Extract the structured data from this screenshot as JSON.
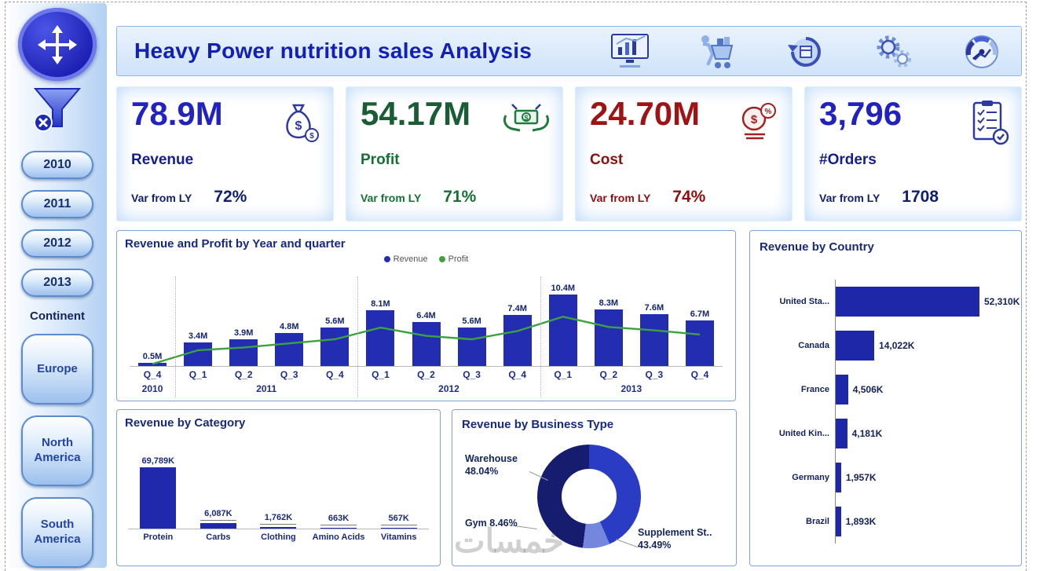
{
  "header": {
    "title": "Heavy Power nutrition sales Analysis",
    "icons": [
      "analytics-monitor-icon",
      "shopper-cart-icon",
      "returns-cycle-icon",
      "gears-icon",
      "gauge-icon"
    ]
  },
  "sidebar": {
    "nav_icon": "move-arrows-icon",
    "filter_icon": "clear-filter-icon",
    "years": [
      "2010",
      "2011",
      "2012",
      "2013"
    ],
    "continent_label": "Continent",
    "continents": [
      "Europe",
      "North America",
      "South America"
    ]
  },
  "kpis": [
    {
      "value": "78.9M",
      "label": "Revenue",
      "var_label": "Var from LY",
      "var_value": "72%",
      "color": "#2222c0",
      "icon": "money-bag-icon"
    },
    {
      "value": "54.17M",
      "label": "Profit",
      "var_label": "Var from LY",
      "var_value": "71%",
      "color": "#1a5c33",
      "icon": "money-hands-icon"
    },
    {
      "value": "24.70M",
      "label": "Cost",
      "var_label": "Var from LY",
      "var_value": "74%",
      "color": "#9e1414",
      "icon": "coins-percent-icon"
    },
    {
      "value": "3,796",
      "label": "#Orders",
      "var_label": "Var from LY",
      "var_value": "1708",
      "color": "#2222c0",
      "icon": "order-checklist-icon"
    }
  ],
  "chart_data": [
    {
      "type": "bar+line",
      "title": "Revenue and Profit by Year and quarter",
      "legend": [
        {
          "name": "Revenue",
          "color": "#232db2"
        },
        {
          "name": "Profit",
          "color": "#3da23d"
        }
      ],
      "categories": [
        "Q_4",
        "Q_1",
        "Q_2",
        "Q_3",
        "Q_4",
        "Q_1",
        "Q_2",
        "Q_3",
        "Q_4",
        "Q_1",
        "Q_2",
        "Q_3",
        "Q_4"
      ],
      "year_groups": [
        {
          "year": "2010",
          "count": 1
        },
        {
          "year": "2011",
          "count": 4
        },
        {
          "year": "2012",
          "count": 4
        },
        {
          "year": "2013",
          "count": 4
        }
      ],
      "series": [
        {
          "name": "Revenue",
          "type": "bar",
          "values_m": [
            0.5,
            3.4,
            3.9,
            4.8,
            5.6,
            8.1,
            6.4,
            5.6,
            7.4,
            10.4,
            8.3,
            7.6,
            6.7
          ],
          "labels": [
            "0.5M",
            "3.4M",
            "3.9M",
            "4.8M",
            "5.6M",
            "8.1M",
            "6.4M",
            "5.6M",
            "7.4M",
            "10.4M",
            "8.3M",
            "7.6M",
            "6.7M"
          ]
        },
        {
          "name": "Profit",
          "type": "line",
          "values_m": [
            0.3,
            2.3,
            2.7,
            3.3,
            3.9,
            5.6,
            4.4,
            3.9,
            5.1,
            7.2,
            5.7,
            5.2,
            4.6
          ]
        }
      ],
      "ylim_m": [
        0,
        11
      ],
      "grid": false,
      "legend_position": "top-center"
    },
    {
      "type": "bar",
      "title": "Revenue by Category",
      "categories": [
        "Protein",
        "Carbs",
        "Clothing",
        "Amino Acids",
        "Vitamins"
      ],
      "values_k": [
        69789,
        6087,
        1762,
        663,
        567
      ],
      "labels": [
        "69,789K",
        "6,087K",
        "1,762K",
        "663K",
        "567K"
      ],
      "bar_color": "#2028ac"
    },
    {
      "type": "pie",
      "title": "Revenue by Business Type",
      "slices": [
        {
          "name": "Supplement St..",
          "pct": 43.49,
          "pct_label": "43.49%",
          "color": "#2b3cc4"
        },
        {
          "name": "Gym",
          "pct": 8.46,
          "pct_label": "8.46%",
          "color": "#7486dd"
        },
        {
          "name": "Warehouse",
          "pct": 48.04,
          "pct_label": "48.04%",
          "color": "#161d6e"
        }
      ]
    },
    {
      "type": "hbar",
      "title": "Revenue by Country",
      "categories": [
        "United Sta...",
        "Canada",
        "France",
        "United Kin...",
        "Germany",
        "Brazil"
      ],
      "values_k": [
        52310,
        14022,
        4506,
        4181,
        1957,
        1893
      ],
      "labels": [
        "52,310K",
        "14,022K",
        "4,506K",
        "4,181K",
        "1,957K",
        "1,893K"
      ],
      "bar_color": "#1d27a8"
    }
  ],
  "watermark": "خمسات"
}
